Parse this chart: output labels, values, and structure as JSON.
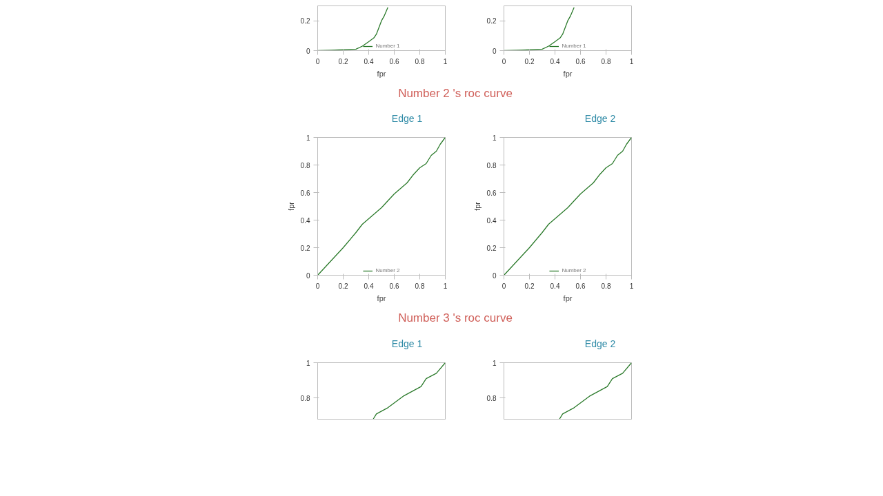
{
  "chart_data": [
    {
      "type": "line",
      "xlabel": "fpr",
      "x": [
        0,
        0.1,
        0.2,
        0.3,
        0.35,
        0.4,
        0.44,
        0.46,
        0.5,
        0.52,
        0.55
      ],
      "series": [
        {
          "name": "Number 1",
          "color": "#2b7a2b",
          "values": [
            0,
            0.003,
            0.006,
            0.01,
            0.03,
            0.06,
            0.085,
            0.11,
            0.2,
            0.23,
            0.29
          ]
        }
      ],
      "xlim": [
        0,
        1
      ],
      "ylim": [
        0,
        0.3
      ],
      "xticks": [
        0,
        0.2,
        0.4,
        0.6,
        0.8,
        1
      ],
      "yticks": [
        0,
        0.2
      ],
      "grid": false,
      "legend": "bottom",
      "marker": "none",
      "line_style": "solid"
    },
    {
      "type": "line",
      "xlabel": "fpr",
      "x": [
        0,
        0.1,
        0.2,
        0.3,
        0.35,
        0.4,
        0.44,
        0.46,
        0.5,
        0.52,
        0.55
      ],
      "series": [
        {
          "name": "Number 1",
          "color": "#2b7a2b",
          "values": [
            0,
            0.003,
            0.006,
            0.01,
            0.03,
            0.06,
            0.085,
            0.11,
            0.2,
            0.23,
            0.29
          ]
        }
      ],
      "xlim": [
        0,
        1
      ],
      "ylim": [
        0,
        0.3
      ],
      "xticks": [
        0,
        0.2,
        0.4,
        0.6,
        0.8,
        1
      ],
      "yticks": [
        0,
        0.2
      ],
      "grid": false,
      "legend": "bottom",
      "marker": "none",
      "line_style": "solid"
    },
    {
      "type": "line",
      "subtitle": "Number 2 's roc curve",
      "title": "Edge 1",
      "xlabel": "fpr",
      "ylabel": "fpr",
      "x": [
        0,
        0.1,
        0.2,
        0.3,
        0.35,
        0.4,
        0.5,
        0.55,
        0.6,
        0.65,
        0.7,
        0.75,
        0.8,
        0.85,
        0.89,
        0.93,
        0.96,
        1
      ],
      "series": [
        {
          "name": "Number 2",
          "color": "#2b7a2b",
          "values": [
            0,
            0.1,
            0.2,
            0.31,
            0.37,
            0.41,
            0.49,
            0.54,
            0.59,
            0.63,
            0.67,
            0.73,
            0.78,
            0.81,
            0.87,
            0.9,
            0.95,
            1
          ]
        }
      ],
      "xlim": [
        0,
        1
      ],
      "ylim": [
        0,
        1
      ],
      "xticks": [
        0,
        0.2,
        0.4,
        0.6,
        0.8,
        1
      ],
      "yticks": [
        0,
        0.2,
        0.4,
        0.6,
        0.8,
        1
      ],
      "grid": false,
      "legend": "bottom",
      "marker": "none",
      "line_style": "solid"
    },
    {
      "type": "line",
      "title": "Edge 2",
      "xlabel": "fpr",
      "ylabel": "fpr",
      "x": [
        0,
        0.1,
        0.2,
        0.3,
        0.35,
        0.4,
        0.5,
        0.55,
        0.6,
        0.65,
        0.7,
        0.75,
        0.8,
        0.85,
        0.89,
        0.93,
        0.96,
        1
      ],
      "series": [
        {
          "name": "Number 2",
          "color": "#2b7a2b",
          "values": [
            0,
            0.1,
            0.2,
            0.31,
            0.37,
            0.41,
            0.49,
            0.54,
            0.59,
            0.63,
            0.67,
            0.73,
            0.78,
            0.81,
            0.87,
            0.9,
            0.95,
            1
          ]
        }
      ],
      "xlim": [
        0,
        1
      ],
      "ylim": [
        0,
        1
      ],
      "xticks": [
        0,
        0.2,
        0.4,
        0.6,
        0.8,
        1
      ],
      "yticks": [
        0,
        0.2,
        0.4,
        0.6,
        0.8,
        1
      ],
      "grid": false,
      "legend": "bottom",
      "marker": "none",
      "line_style": "solid"
    },
    {
      "type": "line",
      "subtitle": "Number 3 's roc curve",
      "title": "Edge 1",
      "x": [
        0.435,
        0.46,
        0.55,
        0.67,
        0.81,
        0.85,
        0.93,
        1
      ],
      "series": [
        {
          "color": "#2b7a2b",
          "values": [
            0.68,
            0.71,
            0.745,
            0.81,
            0.865,
            0.91,
            0.94,
            1
          ]
        }
      ],
      "xlim": [
        0,
        1
      ],
      "ylim": [
        0.68,
        1
      ],
      "yticks": [
        0.8,
        1
      ],
      "tick_labels": "y",
      "grid": false,
      "marker": "none",
      "line_style": "solid"
    },
    {
      "type": "line",
      "title": "Edge 2",
      "x": [
        0.435,
        0.46,
        0.55,
        0.67,
        0.81,
        0.85,
        0.93,
        1
      ],
      "series": [
        {
          "color": "#2b7a2b",
          "values": [
            0.68,
            0.71,
            0.745,
            0.81,
            0.865,
            0.91,
            0.94,
            1
          ]
        }
      ],
      "xlim": [
        0,
        1
      ],
      "ylim": [
        0.68,
        1
      ],
      "yticks": [
        0.8,
        1
      ],
      "tick_labels": "y",
      "grid": false,
      "marker": "none",
      "line_style": "solid"
    }
  ]
}
